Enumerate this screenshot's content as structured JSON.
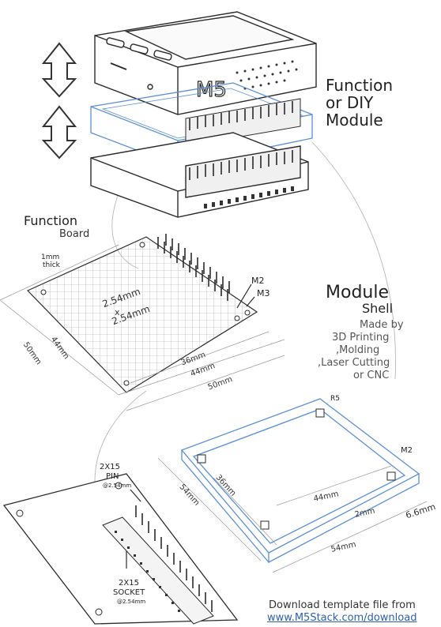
{
  "brand": {
    "logo_text": "M5"
  },
  "labels": {
    "function_or_diy_line1": "Function",
    "function_or_diy_line2": "or DIY",
    "function_or_diy_line3": "Module",
    "function_board_line1": "Function",
    "function_board_line2": "Board",
    "thickness": "1mm",
    "thickness2": "thick",
    "pitch_line1": "2.54mm",
    "pitch_x": "x",
    "pitch_line2": "2.54mm",
    "m2": "M2",
    "m3": "M3",
    "module_line1": "Module",
    "module_line2": "Shell",
    "made_by": "Made by",
    "method1": "3D Printing",
    "method2": ",Molding",
    "method3": ",Laser Cutting",
    "method4": "or CNC",
    "r5": "R5",
    "shell_m2": "M2",
    "pin_line1": "2X15",
    "pin_line2": "PIN",
    "pin_pitch": "@2.54mm",
    "socket_line1": "2X15",
    "socket_line2": "SOCKET",
    "socket_pitch": "@2.54mm",
    "download_line1": "Download template file from",
    "download_url": "www.M5Stack.com/download"
  },
  "dimensions": {
    "board_44_side": "44mm",
    "board_50_side": "50mm",
    "board_36": "36mm",
    "board_44_bottom": "44mm",
    "board_50_bottom": "50mm",
    "shell_54_side": "54mm",
    "shell_36": "36mm",
    "shell_44": "44mm",
    "shell_2": "2mm",
    "shell_66": "6.6mm",
    "shell_54_bottom": "54mm"
  },
  "colors": {
    "line": "#2b2b2b",
    "shell_blue": "#5b8fd6",
    "grid": "#9a9a9a",
    "link": "#2d5fb3"
  }
}
